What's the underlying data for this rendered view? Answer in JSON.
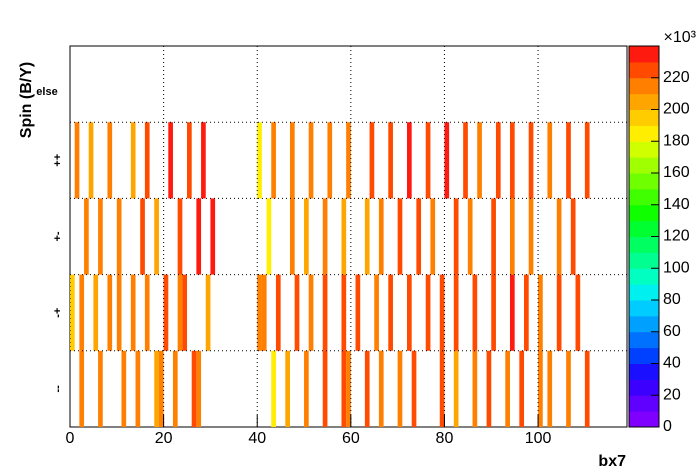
{
  "chart_data": {
    "type": "heatmap",
    "x_label": "bx7",
    "y_label": "Spin (B/Y)",
    "xlim": [
      0,
      119
    ],
    "xticks": [
      0,
      20,
      40,
      60,
      80,
      100
    ],
    "y_categories": [
      "--",
      "-+",
      "+-",
      "++",
      "else"
    ],
    "rows": [
      {
        "x": [
          2,
          6,
          11,
          14,
          18,
          19,
          22,
          26,
          27,
          43,
          46,
          50,
          54,
          58,
          59,
          63,
          66,
          70,
          73,
          79,
          82,
          86,
          89,
          93,
          96,
          100,
          102,
          106,
          110
        ],
        "values": [
          210,
          210,
          215,
          215,
          205,
          210,
          210,
          225,
          215,
          185,
          205,
          210,
          220,
          220,
          215,
          220,
          215,
          210,
          220,
          220,
          205,
          210,
          225,
          215,
          225,
          215,
          215,
          210,
          220
        ]
      },
      {
        "x": [
          0,
          2,
          5,
          8,
          10,
          13,
          16,
          20,
          23,
          24,
          29,
          40,
          41,
          44,
          48,
          51,
          54,
          58,
          61,
          65,
          68,
          72,
          76,
          79,
          82,
          86,
          90,
          94,
          97,
          100,
          104,
          108
        ],
        "values": [
          190,
          210,
          205,
          210,
          210,
          210,
          215,
          220,
          215,
          225,
          205,
          210,
          215,
          220,
          225,
          215,
          220,
          225,
          220,
          215,
          220,
          225,
          225,
          220,
          225,
          225,
          225,
          230,
          225,
          215,
          220,
          220
        ]
      },
      {
        "x": [
          3,
          6,
          10,
          15,
          18,
          23,
          27,
          30,
          42,
          47,
          50,
          54,
          58,
          63,
          66,
          70,
          74,
          77,
          82,
          85,
          90,
          94,
          98,
          104,
          107
        ],
        "values": [
          210,
          210,
          210,
          220,
          205,
          225,
          230,
          235,
          185,
          210,
          205,
          210,
          205,
          205,
          215,
          220,
          225,
          215,
          225,
          215,
          225,
          215,
          210,
          210,
          220
        ]
      },
      {
        "x": [
          1,
          4,
          8,
          13,
          16,
          21,
          25,
          28,
          40,
          43,
          47,
          51,
          55,
          59,
          64,
          68,
          72,
          76,
          80,
          84,
          87,
          91,
          94,
          98,
          102,
          106,
          110
        ],
        "values": [
          210,
          200,
          210,
          200,
          220,
          230,
          225,
          235,
          185,
          210,
          210,
          215,
          210,
          215,
          225,
          220,
          230,
          225,
          230,
          225,
          215,
          225,
          220,
          225,
          210,
          220,
          225
        ]
      }
    ],
    "zlim": [
      0,
      240
    ],
    "zticks": [
      0,
      20,
      40,
      60,
      80,
      100,
      120,
      140,
      160,
      180,
      200,
      220
    ],
    "z_exponent": "×10³",
    "palette": [
      "#7f00ff",
      "#6000ff",
      "#3c00ff",
      "#1a10ff",
      "#0040ff",
      "#0070ff",
      "#00a0ff",
      "#00ccff",
      "#00f0f0",
      "#00ffc0",
      "#00ff90",
      "#00ff60",
      "#00ff30",
      "#10ff00",
      "#40ff00",
      "#70ff00",
      "#a0ff00",
      "#d0ff00",
      "#ffee00",
      "#ffcc00",
      "#ffa500",
      "#ff8000",
      "#ff4a00",
      "#ff1a10"
    ],
    "grid": true
  }
}
